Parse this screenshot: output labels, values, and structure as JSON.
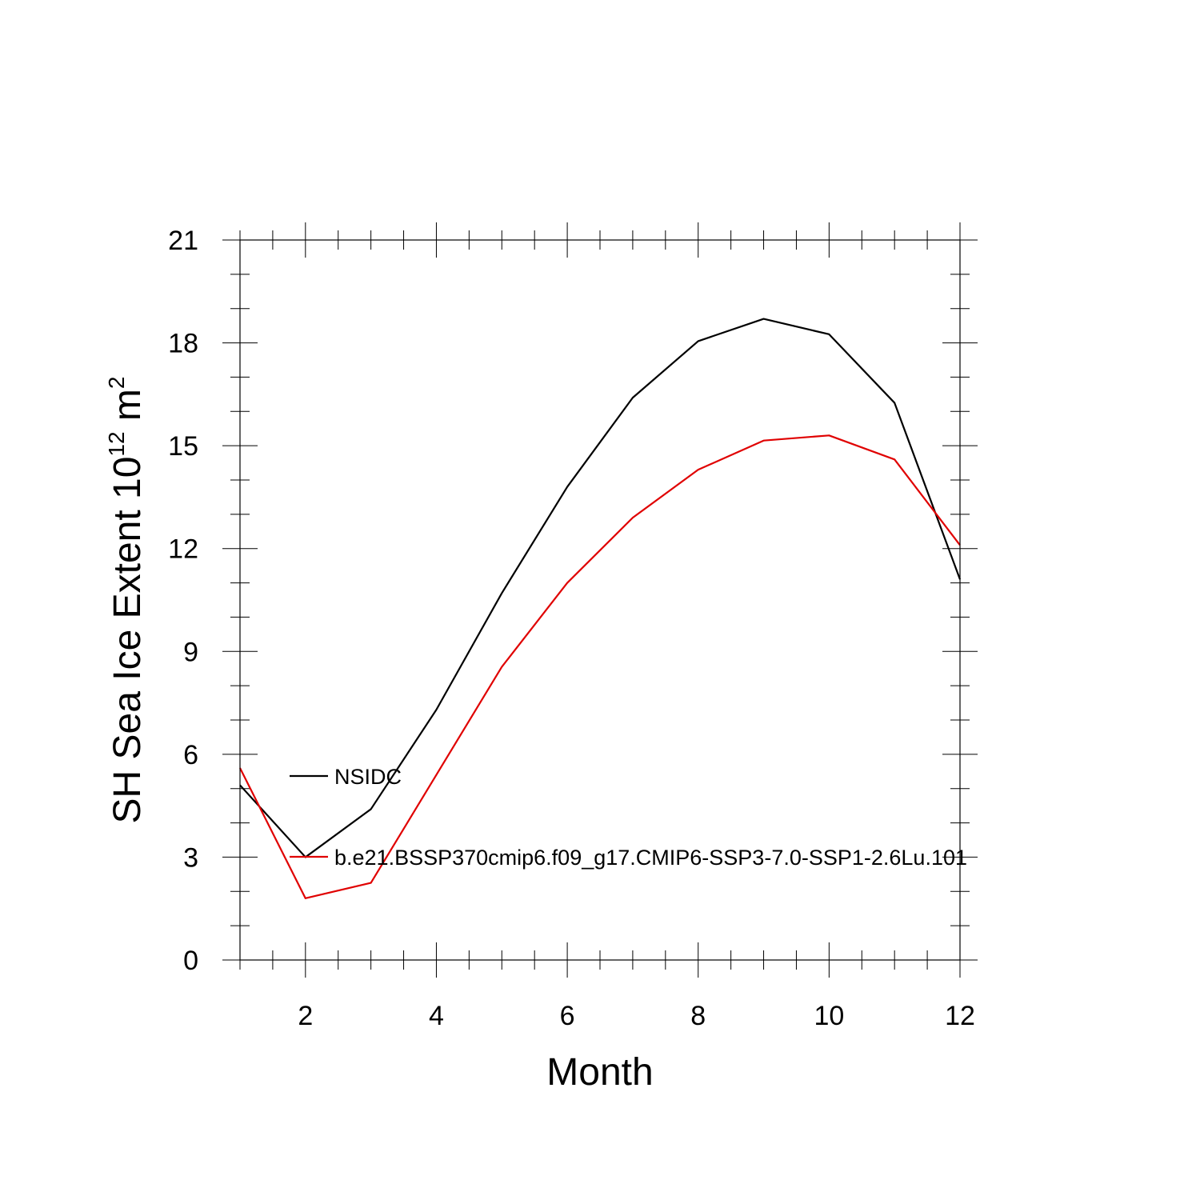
{
  "chart_data": {
    "type": "line",
    "x": [
      1,
      2,
      3,
      4,
      5,
      6,
      7,
      8,
      9,
      10,
      11,
      12
    ],
    "series": [
      {
        "name": "NSIDC",
        "color": "#000000",
        "values": [
          5.1,
          3.0,
          4.4,
          7.3,
          10.7,
          13.8,
          16.4,
          18.05,
          18.7,
          18.25,
          16.25,
          11.1
        ]
      },
      {
        "name": "b.e21.BSSP370cmip6.f09_g17.CMIP6-SSP3-7.0-SSP1-2.6Lu.101",
        "color": "#e00000",
        "values": [
          5.6,
          1.8,
          2.25,
          5.4,
          8.55,
          11.0,
          12.9,
          14.3,
          15.15,
          15.3,
          14.6,
          12.1
        ]
      }
    ],
    "xlabel": "Month",
    "ylabel_main": "SH Sea Ice Extent 10",
    "ylabel_exp1": "12",
    "ylabel_unit": " m",
    "ylabel_exp2": "2",
    "xlim": [
      1,
      12
    ],
    "ylim": [
      0,
      21
    ],
    "xticks": [
      2,
      4,
      6,
      8,
      10,
      12
    ],
    "yticks": [
      0,
      3,
      6,
      9,
      12,
      15,
      18,
      21
    ],
    "grid": false,
    "legend_position": "left, inside plot"
  }
}
